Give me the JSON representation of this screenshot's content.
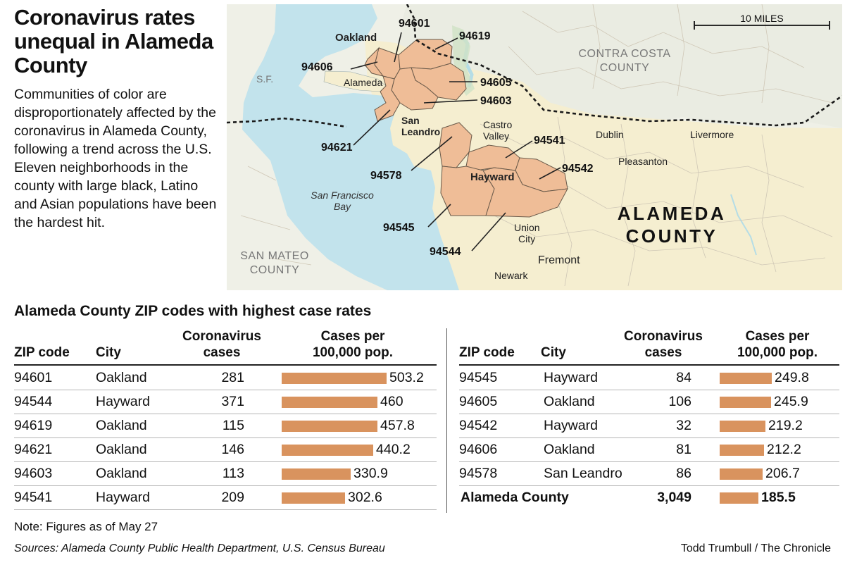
{
  "headline": "Coronavirus rates unequal in Alameda County",
  "intro": "Communities of color are disproportionately affected by the coronavirus in Alameda County, following a trend across the U.S. Eleven neighborhoods in the county with large black, Latino and Asian populations have been the hardest hit.",
  "map": {
    "scale_label": "10 MILES",
    "zip_labels": {
      "z94601": "94601",
      "z94619": "94619",
      "z94606": "94606",
      "z94605": "94605",
      "z94603": "94603",
      "z94621": "94621",
      "z94578": "94578",
      "z94541": "94541",
      "z94542": "94542",
      "z94545": "94545",
      "z94544": "94544"
    },
    "places": {
      "oakland": "Oakland",
      "alameda": "Alameda",
      "sf": "S.F.",
      "san": "San",
      "leandro": "Leandro",
      "castro": "Castro",
      "valley": "Valley",
      "dublin": "Dublin",
      "livermore": "Livermore",
      "pleasanton": "Pleasanton",
      "hayward": "Hayward",
      "union": "Union",
      "city": "City",
      "fremont": "Fremont",
      "newark": "Newark"
    },
    "water": {
      "line1": "San Francisco",
      "line2": "Bay"
    },
    "counties": {
      "contra1": "CONTRA COSTA",
      "contra2": "COUNTY",
      "mateo1": "SAN MATEO",
      "mateo2": "COUNTY",
      "alameda1": "ALAMEDA",
      "alameda2": "COUNTY"
    },
    "colors": {
      "land_alameda": "#f5eed0",
      "land_other": "#eff0e7",
      "water": "#c2e3ec",
      "highlight": "#efbd97",
      "highlight_stroke": "#6a5a4a",
      "border": "#1a1a1a",
      "park_green": "#cfe2c6"
    }
  },
  "table": {
    "title": "Alameda County ZIP codes with highest case rates",
    "headers": {
      "zip": "ZIP code",
      "city": "City",
      "cases1": "Coronavirus",
      "cases2": "cases",
      "rate1": "Cases per",
      "rate2": "100,000 pop."
    },
    "left_rows": [
      {
        "zip": "94601",
        "city": "Oakland",
        "cases": "281",
        "rate": 503.2,
        "rate_label": "503.2"
      },
      {
        "zip": "94544",
        "city": "Hayward",
        "cases": "371",
        "rate": 460,
        "rate_label": "460"
      },
      {
        "zip": "94619",
        "city": "Oakland",
        "cases": "115",
        "rate": 457.8,
        "rate_label": "457.8"
      },
      {
        "zip": "94621",
        "city": "Oakland",
        "cases": "146",
        "rate": 440.2,
        "rate_label": "440.2"
      },
      {
        "zip": "94603",
        "city": "Oakland",
        "cases": "113",
        "rate": 330.9,
        "rate_label": "330.9"
      },
      {
        "zip": "94541",
        "city": "Hayward",
        "cases": "209",
        "rate": 302.6,
        "rate_label": "302.6"
      }
    ],
    "right_rows": [
      {
        "zip": "94545",
        "city": "Hayward",
        "cases": "84",
        "rate": 249.8,
        "rate_label": "249.8"
      },
      {
        "zip": "94605",
        "city": "Oakland",
        "cases": "106",
        "rate": 245.9,
        "rate_label": "245.9"
      },
      {
        "zip": "94542",
        "city": "Hayward",
        "cases": "32",
        "rate": 219.2,
        "rate_label": "219.2"
      },
      {
        "zip": "94606",
        "city": "Oakland",
        "cases": "81",
        "rate": 212.2,
        "rate_label": "212.2"
      },
      {
        "zip": "94578",
        "city": "San Leandro",
        "cases": "86",
        "rate": 206.7,
        "rate_label": "206.7"
      }
    ],
    "total": {
      "label": "Alameda County",
      "cases": "3,049",
      "rate": 185.5,
      "rate_label": "185.5"
    },
    "bar_color": "#d9935e"
  },
  "note": "Note: Figures as of May 27",
  "sources": "Sources: Alameda County Public Health Department, U.S. Census Bureau",
  "credit": "Todd Trumbull / The Chronicle"
}
